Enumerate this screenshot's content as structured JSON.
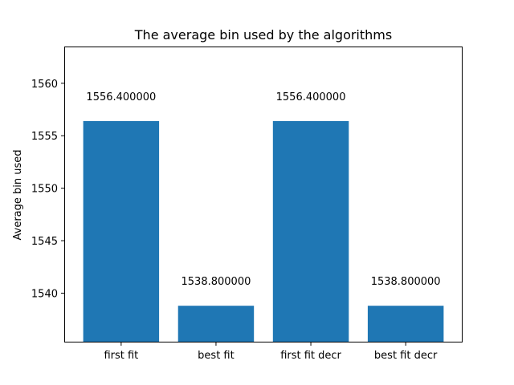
{
  "chart_data": {
    "type": "bar",
    "title": "The average bin used by the algorithms",
    "xlabel": "",
    "ylabel": "Average bin used",
    "categories": [
      "first fit",
      "best fit",
      "first fit decr",
      "best fit decr"
    ],
    "values": [
      1556.4,
      1538.8,
      1556.4,
      1538.8
    ],
    "data_labels": [
      "1556.400000",
      "1538.800000",
      "1556.400000",
      "1538.800000"
    ],
    "ylim": [
      1535.3,
      1563.5
    ],
    "yticks": [
      1540,
      1545,
      1550,
      1555,
      1560
    ],
    "ytick_labels": [
      "1540",
      "1545",
      "1550",
      "1555",
      "1560"
    ],
    "grid": false,
    "bar_color": "#1f77b4"
  }
}
